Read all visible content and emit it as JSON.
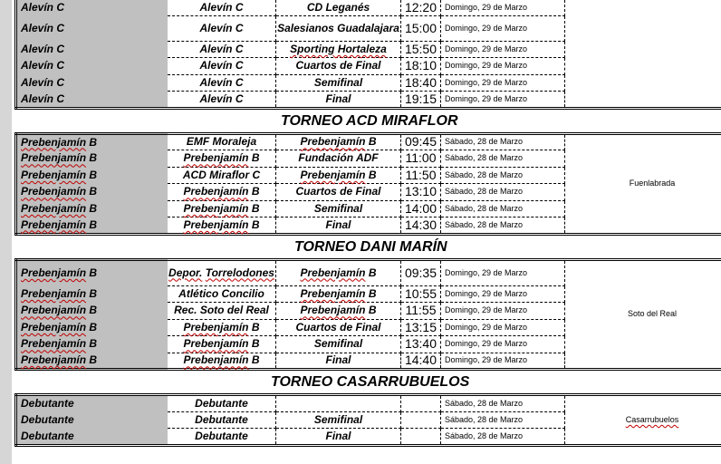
{
  "sections": [
    {
      "title": "",
      "venue": "",
      "rows": [
        {
          "cat": "Alevín C",
          "team1": "Alevín C",
          "team2": "CD Leganés",
          "time": "12:20",
          "date": "Domingo, 29 de Marzo"
        },
        {
          "cat": "Alevín C",
          "team1": "Alevín C",
          "team2": "Salesianos Guadalajara",
          "time": "15:00",
          "date": "Domingo, 29 de Marzo"
        },
        {
          "cat": "Alevín C",
          "team1": "Alevín C",
          "team2": "Sporting Hortaleza",
          "time": "15:50",
          "date": "Domingo, 29 de Marzo"
        },
        {
          "cat": "Alevín C",
          "team1": "Alevín C",
          "team2": "Cuartos de Final",
          "time": "18:10",
          "date": "Domingo, 29 de Marzo"
        },
        {
          "cat": "Alevín C",
          "team1": "Alevín C",
          "team2": "Semifinal",
          "time": "18:40",
          "date": "Domingo, 29 de Marzo"
        },
        {
          "cat": "Alevín C",
          "team1": "Alevín C",
          "team2": "Final",
          "time": "19:15",
          "date": "Domingo, 29 de Marzo"
        }
      ]
    },
    {
      "title": "TORNEO ACD MIRAFLOR",
      "venue": "Fuenlabrada",
      "rows": [
        {
          "cat": "Prebenjamín B",
          "team1": "EMF Moraleja",
          "team2": "Prebenjamín B",
          "time": "09:45",
          "date": "Sábado, 28 de Marzo"
        },
        {
          "cat": "Prebenjamín B",
          "team1": "Prebenjamín B",
          "team2": "Fundación ADF",
          "time": "11:00",
          "date": "Sábado, 28 de Marzo"
        },
        {
          "cat": "Prebenjamín B",
          "team1": "ACD Miraflor C",
          "team2": "Prebenjamín B",
          "time": "11:50",
          "date": "Sábado, 28 de Marzo"
        },
        {
          "cat": "Prebenjamín B",
          "team1": "Prebenjamín B",
          "team2": "Cuartos de Final",
          "time": "13:10",
          "date": "Sábado, 28 de Marzo"
        },
        {
          "cat": "Prebenjamín B",
          "team1": "Prebenjamín B",
          "team2": "Semifinal",
          "time": "14:00",
          "date": "Sábado, 28 de Marzo"
        },
        {
          "cat": "Prebenjamín B",
          "team1": "Prebenjamín B",
          "team2": "Final",
          "time": "14:30",
          "date": "Sábado, 28 de Marzo"
        }
      ]
    },
    {
      "title": "TORNEO DANI MARÍN",
      "venue": "Soto del Real",
      "rows": [
        {
          "cat": "Prebenjamín B",
          "team1": "Depor. Torrelodones",
          "team2": "Prebenjamín B",
          "time": "09:35",
          "date": "Domingo, 29 de Marzo"
        },
        {
          "cat": "Prebenjamín B",
          "team1": "Atlético Concilio",
          "team2": "Prebenjamín B",
          "time": "10:55",
          "date": "Domingo, 29 de Marzo"
        },
        {
          "cat": "Prebenjamín B",
          "team1": "Rec. Soto del Real",
          "team2": "Prebenjamín B",
          "time": "11:55",
          "date": "Domingo, 29 de Marzo"
        },
        {
          "cat": "Prebenjamín B",
          "team1": "Prebenjamín B",
          "team2": "Cuartos de Final",
          "time": "13:15",
          "date": "Domingo, 29 de Marzo"
        },
        {
          "cat": "Prebenjamín B",
          "team1": "Prebenjamín B",
          "team2": "Semifinal",
          "time": "13:40",
          "date": "Domingo, 29 de Marzo"
        },
        {
          "cat": "Prebenjamín B",
          "team1": "Prebenjamín B",
          "team2": "Final",
          "time": "14:40",
          "date": "Domingo, 29 de Marzo"
        }
      ]
    },
    {
      "title": "TORNEO CASARRUBUELOS",
      "venue": "Casarrubuelos",
      "rows": [
        {
          "cat": "Debutante",
          "team1": "Debutante",
          "team2": "",
          "time": "",
          "date": "Sábado, 28 de Marzo"
        },
        {
          "cat": "Debutante",
          "team1": "Debutante",
          "team2": "Semifinal",
          "time": "",
          "date": "Sábado, 28 de Marzo"
        },
        {
          "cat": "Debutante",
          "team1": "Debutante",
          "team2": "Final",
          "time": "",
          "date": "Sábado, 28 de Marzo"
        }
      ]
    }
  ]
}
